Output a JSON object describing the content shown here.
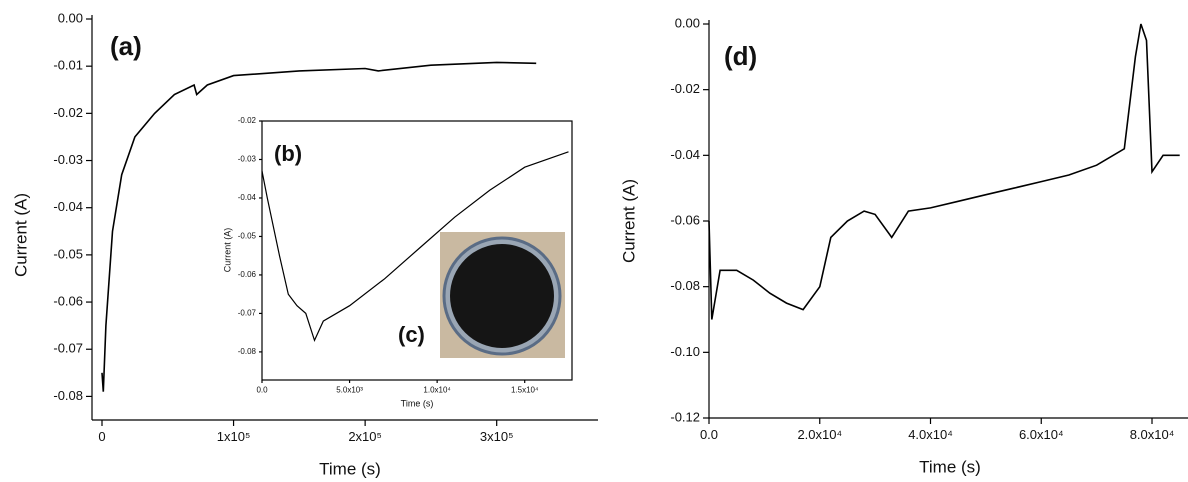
{
  "chart_data": [
    {
      "type": "line",
      "annotations": [
        "(a)"
      ],
      "x_label": "Time (s)",
      "y_label": "Current (A)",
      "xlim": [
        -7600,
        377000
      ],
      "ylim": [
        -0.085,
        0
      ],
      "xticks": [
        0,
        {
          "value": 100000,
          "label": "1x10⁵"
        },
        {
          "value": 200000,
          "label": "2x10⁵"
        },
        {
          "value": 300000,
          "label": "3x10⁵"
        }
      ],
      "yticks": [
        {
          "value": 0,
          "label": "0.00"
        },
        -0.01,
        -0.02,
        -0.03,
        -0.04,
        -0.05,
        -0.06,
        -0.07,
        -0.08
      ],
      "x": [
        0,
        1000,
        3000,
        8000,
        15000,
        25000,
        40000,
        55000,
        70000,
        72000,
        80000,
        100000,
        150000,
        200000,
        210000,
        250000,
        300000,
        330000
      ],
      "series": [
        {
          "color": "#000000",
          "values": [
            -0.075,
            -0.079,
            -0.065,
            -0.045,
            -0.033,
            -0.025,
            -0.02,
            -0.016,
            -0.014,
            -0.016,
            -0.014,
            -0.012,
            -0.011,
            -0.0105,
            -0.011,
            -0.0098,
            -0.0092,
            -0.0094
          ]
        }
      ]
    },
    {
      "type": "line",
      "annotations": [
        "(b)",
        "(c)"
      ],
      "x_label": "Time (s)",
      "y_label": "Current (A)",
      "xlim": [
        0,
        17700
      ],
      "ylim": [
        -0.0873,
        -0.02
      ],
      "xticks": [
        {
          "value": 0,
          "label": "0.0"
        },
        {
          "value": 5000,
          "label": "5.0x10³"
        },
        {
          "value": 10000,
          "label": "1.0x10⁴"
        },
        {
          "value": 15000,
          "label": "1.5x10⁴"
        }
      ],
      "yticks": [
        -0.02,
        -0.03,
        -0.04,
        -0.05,
        -0.06,
        -0.07,
        -0.08
      ],
      "x": [
        0,
        300,
        1000,
        1500,
        2000,
        2500,
        3000,
        3500,
        5000,
        7000,
        9000,
        11000,
        13000,
        15000,
        17500
      ],
      "series": [
        {
          "color": "#000000",
          "values": [
            -0.033,
            -0.04,
            -0.055,
            -0.065,
            -0.068,
            -0.07,
            -0.077,
            -0.072,
            -0.068,
            -0.061,
            -0.053,
            -0.045,
            -0.038,
            -0.032,
            -0.028
          ]
        }
      ]
    },
    {
      "type": "line",
      "annotations": [
        "(d)"
      ],
      "x_label": "Time (s)",
      "y_label": "Current (A)",
      "xlim": [
        0,
        86500
      ],
      "ylim": [
        -0.12,
        0
      ],
      "xticks": [
        {
          "value": 0,
          "label": "0.0"
        },
        {
          "value": 20000,
          "label": "2.0x10⁴"
        },
        {
          "value": 40000,
          "label": "4.0x10⁴"
        },
        {
          "value": 60000,
          "label": "6.0x10⁴"
        },
        {
          "value": 80000,
          "label": "8.0x10⁴"
        }
      ],
      "yticks": [
        {
          "value": 0,
          "label": "0.00"
        },
        -0.02,
        -0.04,
        -0.06,
        -0.08,
        {
          "value": -0.1,
          "label": "-0.10"
        },
        -0.12
      ],
      "x": [
        0,
        500,
        2000,
        5000,
        8000,
        11000,
        14000,
        17000,
        20000,
        22000,
        25000,
        28000,
        30000,
        33000,
        36000,
        40000,
        45000,
        50000,
        55000,
        60000,
        65000,
        70000,
        75000,
        77000,
        78000,
        79000,
        80000,
        82000,
        85000
      ],
      "series": [
        {
          "color": "#000000",
          "values": [
            -0.06,
            -0.09,
            -0.075,
            -0.075,
            -0.078,
            -0.082,
            -0.085,
            -0.087,
            -0.08,
            -0.065,
            -0.06,
            -0.057,
            -0.058,
            -0.065,
            -0.057,
            -0.056,
            -0.054,
            -0.052,
            -0.05,
            -0.048,
            -0.046,
            -0.043,
            -0.038,
            -0.01,
            0,
            -0.005,
            -0.045,
            -0.04,
            -0.04
          ]
        }
      ]
    }
  ]
}
